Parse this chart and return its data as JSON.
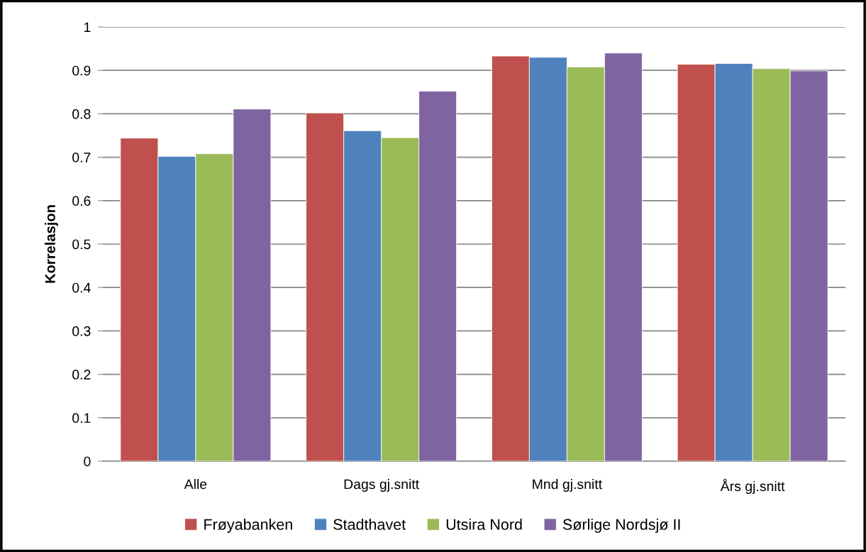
{
  "chart_data": {
    "type": "bar",
    "ylabel": "Korrelasjon",
    "categories": [
      "Alle",
      "Dags gj.snitt",
      "Mnd gj.snitt",
      "Års gj.snitt"
    ],
    "series": [
      {
        "name": "Frøyabanken",
        "color": "#c0504d",
        "values": [
          0.744,
          0.802,
          0.933,
          0.914
        ]
      },
      {
        "name": "Stadthavet",
        "color": "#4f81bd",
        "values": [
          0.702,
          0.761,
          0.93,
          0.916
        ]
      },
      {
        "name": "Utsira Nord",
        "color": "#9bbb59",
        "values": [
          0.708,
          0.745,
          0.908,
          0.904
        ]
      },
      {
        "name": "Sørlige Nordsjø II",
        "color": "#8064a2",
        "values": [
          0.811,
          0.852,
          0.94,
          0.899
        ]
      }
    ],
    "ylim": [
      0,
      1
    ],
    "yticks": [
      0,
      0.1,
      0.2,
      0.3,
      0.4,
      0.5,
      0.6,
      0.7,
      0.8,
      0.9,
      1
    ],
    "grid": "y",
    "legend": "bottom"
  }
}
